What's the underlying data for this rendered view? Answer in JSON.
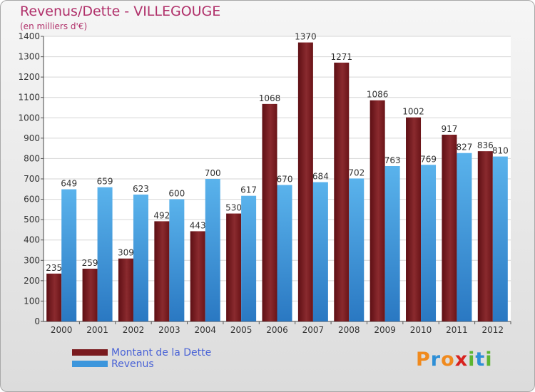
{
  "chart_data": {
    "type": "bar",
    "title": "Revenus/Dette - VILLEGOUGE",
    "subtitle": "(en milliers d'€)",
    "categories": [
      "2000",
      "2001",
      "2002",
      "2003",
      "2004",
      "2005",
      "2006",
      "2007",
      "2008",
      "2009",
      "2010",
      "2011",
      "2012"
    ],
    "series": [
      {
        "name": "Montant de la Dette",
        "color": "#7a1a1e",
        "values": [
          235,
          259,
          309,
          492,
          443,
          530,
          1068,
          1370,
          1271,
          1086,
          1002,
          917,
          836
        ]
      },
      {
        "name": "Revenus",
        "color": "#3c96dc",
        "values": [
          649,
          659,
          623,
          600,
          700,
          617,
          670,
          684,
          702,
          763,
          769,
          827,
          810
        ]
      }
    ],
    "ylim": [
      0,
      1400
    ],
    "yticks": [
      0,
      100,
      200,
      300,
      400,
      500,
      600,
      700,
      800,
      900,
      1000,
      1100,
      1200,
      1300,
      1400
    ],
    "grid": true,
    "legend_position": "bottom-left"
  },
  "logo": {
    "letters": [
      "P",
      "r",
      "o",
      "x",
      "i",
      "t",
      "i"
    ],
    "colors": [
      "#f08a1e",
      "#2e8fd6",
      "#f08a1e",
      "#d8231f",
      "#5cb531",
      "#2e8fd6",
      "#5cb531"
    ]
  }
}
